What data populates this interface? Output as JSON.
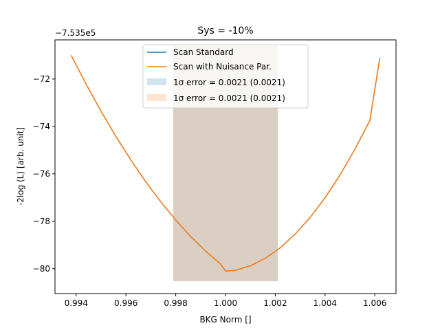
{
  "chart_data": {
    "type": "line",
    "title": "Sys = -10%",
    "xlabel": "BKG Norm []",
    "ylabel": "-2log (L) [arb. unit]",
    "offset_text": "−7.535e5",
    "xlim": [
      0.99315,
      1.00685
    ],
    "ylim": [
      -81.05,
      -70.35
    ],
    "xticks": [
      0.994,
      0.996,
      0.998,
      1.0,
      1.002,
      1.004,
      1.006
    ],
    "xtick_labels": [
      "0.994",
      "0.996",
      "0.998",
      "1.000",
      "1.002",
      "1.004",
      "1.006"
    ],
    "yticks": [
      -80,
      -78,
      -76,
      -74,
      -72
    ],
    "ytick_labels": [
      "−80",
      "−78",
      "−76",
      "−74",
      "−72"
    ],
    "grid": false,
    "legend_position": "top-center",
    "series": [
      {
        "name": "Scan Standard",
        "color": "#1f77b4",
        "x": [
          0.9938,
          0.9944,
          0.995,
          0.9956,
          0.9962,
          0.9968,
          0.9974,
          0.998,
          0.9986,
          0.9992,
          0.9998,
          1.0,
          1.0004,
          1.001,
          1.0016,
          1.0022,
          1.0028,
          1.0034,
          1.004,
          1.0046,
          1.0052,
          1.0058,
          1.0062
        ],
        "y": [
          -71.0,
          -72.22,
          -73.36,
          -74.43,
          -75.42,
          -76.34,
          -77.18,
          -77.95,
          -78.64,
          -79.26,
          -79.8,
          -80.1,
          -80.07,
          -79.88,
          -79.56,
          -79.12,
          -78.54,
          -77.84,
          -77.01,
          -76.05,
          -74.96,
          -73.75,
          -71.1
        ]
      },
      {
        "name": "Scan with Nuisance Par.",
        "color": "#ff7f0e",
        "x": [
          0.9938,
          0.9944,
          0.995,
          0.9956,
          0.9962,
          0.9968,
          0.9974,
          0.998,
          0.9986,
          0.9992,
          0.9998,
          1.0,
          1.0004,
          1.001,
          1.0016,
          1.0022,
          1.0028,
          1.0034,
          1.004,
          1.0046,
          1.0052,
          1.0058,
          1.0062
        ],
        "y": [
          -71.0,
          -72.22,
          -73.36,
          -74.43,
          -75.42,
          -76.34,
          -77.18,
          -77.95,
          -78.64,
          -79.26,
          -79.8,
          -80.1,
          -80.07,
          -79.88,
          -79.56,
          -79.12,
          -78.54,
          -77.84,
          -77.01,
          -76.05,
          -74.96,
          -73.75,
          -71.1
        ]
      }
    ],
    "bands": [
      {
        "label": "1σ error = 0.0021 (0.0021)",
        "color": "#1f77b4",
        "opacity": 0.2,
        "x": [
          0.9979,
          1.0021
        ],
        "y": [
          -80.53,
          -70.6
        ]
      },
      {
        "label": "1σ error = 0.0021 (0.0021)",
        "color": "#ff7f0e",
        "opacity": 0.2,
        "x": [
          0.9979,
          1.0021
        ],
        "y": [
          -80.53,
          -70.6
        ]
      }
    ]
  }
}
